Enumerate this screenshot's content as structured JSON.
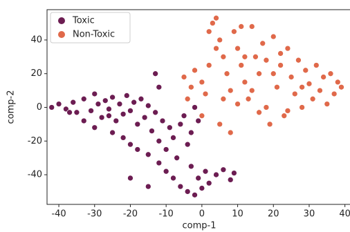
{
  "chart_data": {
    "type": "scatter",
    "x_label": "comp-1",
    "y_label": "comp-2",
    "xlim": [
      -43.3,
      42
    ],
    "ylim": [
      -57.6,
      58
    ],
    "xticks": [
      -40,
      -30,
      -20,
      -10,
      0,
      10,
      20,
      30,
      40
    ],
    "yticks": [
      -40,
      -20,
      0,
      20,
      40
    ],
    "legend": "upper left",
    "series": [
      {
        "name": "Toxic",
        "color": "#6c1d52",
        "x": [
          -42,
          -40,
          -38,
          -36,
          -35,
          -33,
          -31,
          -30,
          -29,
          -28,
          -27,
          -26,
          -25,
          -24,
          -23,
          -22,
          -21,
          -20,
          -19,
          -18,
          -17,
          -16,
          -15,
          -14,
          -13,
          -12,
          -11,
          -10,
          -9,
          -8,
          -7,
          -6,
          -5,
          -4,
          -3,
          -2,
          -1,
          -33,
          -30,
          -25,
          -22,
          -20,
          -18,
          -15,
          -12,
          -10,
          -8,
          -6,
          -4,
          -2,
          0,
          2,
          4,
          6,
          8,
          9,
          -1,
          1,
          -3,
          -20,
          -15,
          -12,
          -13,
          -26,
          -37
        ],
        "values": [
          0,
          2,
          -1,
          3,
          -3,
          5,
          -2,
          8,
          2,
          -6,
          4,
          -1,
          6,
          -8,
          2,
          -4,
          7,
          -2,
          3,
          -10,
          5,
          -6,
          1,
          -14,
          -3,
          -20,
          -8,
          -25,
          -12,
          -18,
          -30,
          -10,
          -5,
          -22,
          -15,
          0,
          -8,
          -8,
          -12,
          -15,
          -18,
          -22,
          -25,
          -28,
          -33,
          -38,
          -42,
          -47,
          -50,
          -52,
          -48,
          -45,
          -40,
          -37,
          -43,
          -39,
          -42,
          -38,
          -35,
          -42,
          -47,
          12,
          20,
          -5,
          -3
        ]
      },
      {
        "name": "Non-Toxic",
        "color": "#e0694a",
        "x": [
          -5,
          -3,
          -2,
          0,
          1,
          2,
          3,
          4,
          5,
          6,
          7,
          8,
          9,
          10,
          11,
          12,
          13,
          14,
          15,
          16,
          17,
          18,
          19,
          20,
          21,
          22,
          23,
          24,
          25,
          26,
          27,
          28,
          29,
          30,
          31,
          32,
          33,
          34,
          35,
          36,
          37,
          38,
          39,
          5,
          0,
          8,
          12,
          14,
          18,
          22,
          16,
          10,
          20,
          24,
          28,
          4,
          6,
          -4,
          2,
          11
        ],
        "values": [
          18,
          12,
          22,
          15,
          8,
          25,
          50,
          53,
          40,
          30,
          20,
          10,
          45,
          35,
          25,
          15,
          5,
          48,
          30,
          20,
          38,
          0,
          -10,
          42,
          12,
          25,
          -5,
          35,
          18,
          8,
          28,
          0,
          22,
          14,
          5,
          25,
          10,
          18,
          2,
          20,
          8,
          15,
          12,
          -10,
          -5,
          -15,
          30,
          10,
          28,
          32,
          -3,
          2,
          20,
          -2,
          12,
          35,
          5,
          5,
          45,
          48
        ]
      }
    ]
  }
}
